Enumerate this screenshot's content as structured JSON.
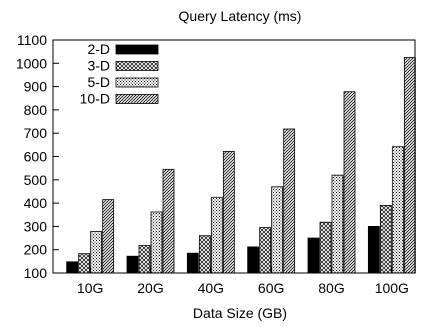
{
  "chart_data": {
    "type": "bar",
    "title": "Query Latency (ms)",
    "xlabel": "Data Size (GB)",
    "ylabel": "",
    "ylim": [
      100,
      1100
    ],
    "yticks": [
      100,
      200,
      300,
      400,
      500,
      600,
      700,
      800,
      900,
      1000,
      1100
    ],
    "categories": [
      "10G",
      "20G",
      "40G",
      "60G",
      "80G",
      "100G"
    ],
    "grid": false,
    "legend_position": "top-left",
    "series": [
      {
        "name": "2-D",
        "pattern": "solid",
        "values": [
          148,
          172,
          185,
          212,
          250,
          300
        ]
      },
      {
        "name": "3-D",
        "pattern": "crosshatch",
        "values": [
          183,
          218,
          260,
          295,
          318,
          390
        ]
      },
      {
        "name": "5-D",
        "pattern": "dots",
        "values": [
          278,
          362,
          425,
          470,
          520,
          642
        ]
      },
      {
        "name": "10-D",
        "pattern": "diagonal",
        "values": [
          415,
          545,
          622,
          718,
          878,
          1025
        ]
      }
    ]
  }
}
